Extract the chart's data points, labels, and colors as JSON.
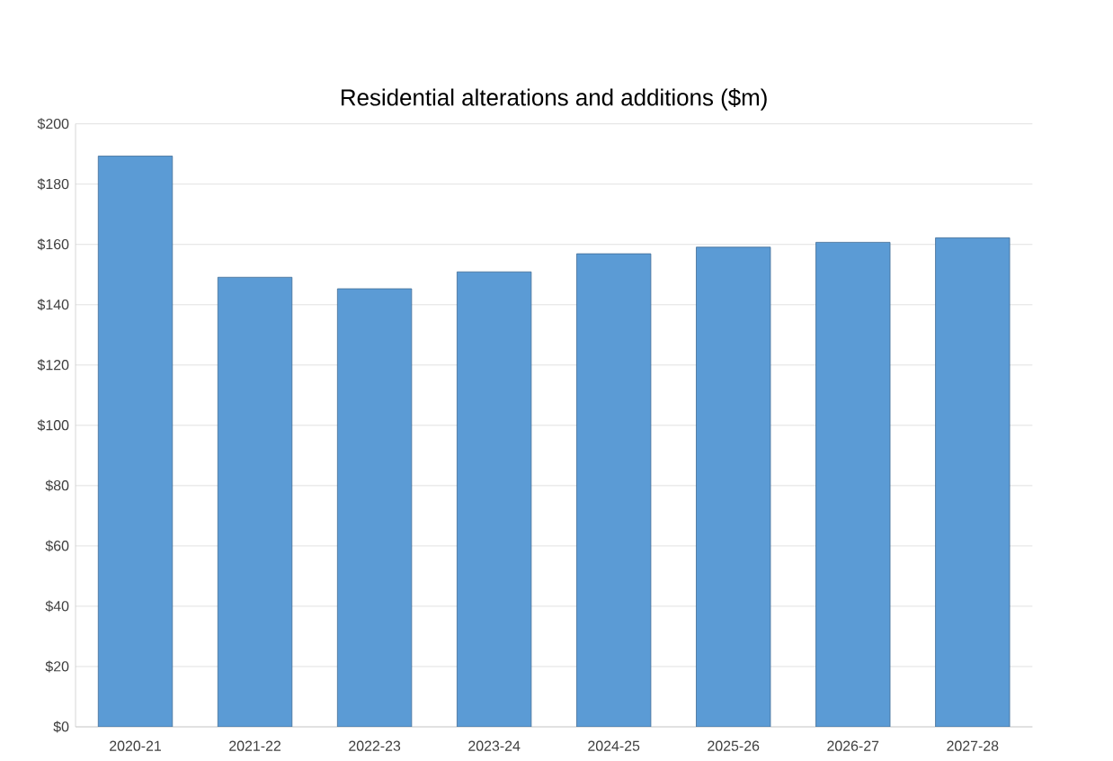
{
  "chart_data": {
    "type": "bar",
    "title": "Residential alterations and additions ($m)",
    "categories": [
      "2020-21",
      "2021-22",
      "2022-23",
      "2023-24",
      "2024-25",
      "2025-26",
      "2026-27",
      "2027-28"
    ],
    "values": [
      189.3,
      149.1,
      145.3,
      150.9,
      156.9,
      159.1,
      160.7,
      162.2
    ],
    "color": "#5b9bd5",
    "ylim": [
      0,
      200
    ],
    "yticks": [
      {
        "value": 0,
        "label": "$0"
      },
      {
        "value": 20,
        "label": "$20"
      },
      {
        "value": 40,
        "label": "$40"
      },
      {
        "value": 60,
        "label": "$60"
      },
      {
        "value": 80,
        "label": "$80"
      },
      {
        "value": 100,
        "label": "$100"
      },
      {
        "value": 120,
        "label": "$120"
      },
      {
        "value": 140,
        "label": "$140"
      },
      {
        "value": 160,
        "label": "$160"
      },
      {
        "value": 180,
        "label": "$180"
      },
      {
        "value": 200,
        "label": "$200"
      }
    ],
    "grid": "y"
  }
}
